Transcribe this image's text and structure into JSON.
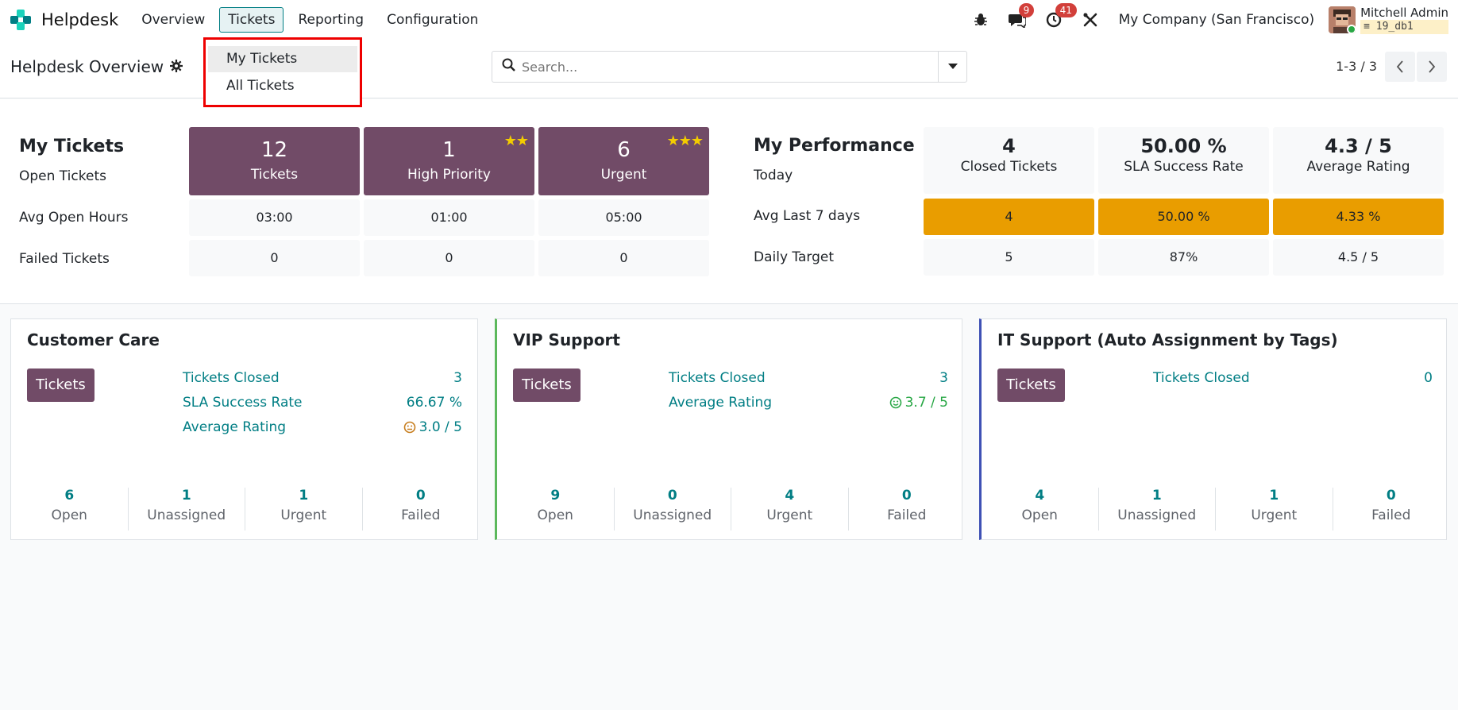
{
  "app": {
    "name": "Helpdesk"
  },
  "menu": [
    "Overview",
    "Tickets",
    "Reporting",
    "Configuration"
  ],
  "nav": {
    "chat_count": "9",
    "activity_count": "41",
    "company": "My Company (San Francisco)",
    "user_name": "Mitchell Admin",
    "user_db": "19_db1"
  },
  "control": {
    "title": "Helpdesk Overview",
    "search_placeholder": "Search...",
    "pager": "1-3 / 3"
  },
  "dropdown": [
    "My Tickets",
    "All Tickets"
  ],
  "my_tickets": {
    "heading": "My Tickets",
    "row_open": "Open Tickets",
    "row_avg": "Avg Open Hours",
    "row_failed": "Failed Tickets",
    "tiles": [
      {
        "value": "12",
        "label": "Tickets",
        "stars": ""
      },
      {
        "value": "1",
        "label": "High Priority",
        "stars": "★★"
      },
      {
        "value": "6",
        "label": "Urgent",
        "stars": "★★★"
      }
    ],
    "avg": [
      "03:00",
      "01:00",
      "05:00"
    ],
    "failed": [
      "0",
      "0",
      "0"
    ]
  },
  "performance": {
    "heading": "My Performance",
    "row_today": "Today",
    "row_avg7": "Avg Last 7 days",
    "row_target": "Daily Target",
    "today": [
      {
        "value": "4",
        "label": "Closed Tickets"
      },
      {
        "value": "50.00 %",
        "label": "SLA Success Rate"
      },
      {
        "value": "4.3 / 5",
        "label": "Average Rating"
      }
    ],
    "avg7": [
      "4",
      "50.00 %",
      "4.33 %"
    ],
    "target": [
      "5",
      "87%",
      "4.5 / 5"
    ]
  },
  "teams": [
    {
      "name": "Customer Care",
      "button": "Tickets",
      "color": "#ffffff",
      "stats": [
        {
          "label": "Tickets Closed",
          "value": "3"
        },
        {
          "label": "SLA Success Rate",
          "value": "66.67 %"
        },
        {
          "label": "Average Rating",
          "value": "3.0 / 5",
          "icon": "neutral-face-icon"
        }
      ],
      "bottom": [
        {
          "value": "6",
          "label": "Open"
        },
        {
          "value": "1",
          "label": "Unassigned"
        },
        {
          "value": "1",
          "label": "Urgent"
        },
        {
          "value": "0",
          "label": "Failed"
        }
      ]
    },
    {
      "name": "VIP Support",
      "button": "Tickets",
      "color": "#5cb85c",
      "stats": [
        {
          "label": "Tickets Closed",
          "value": "3"
        },
        {
          "label": "Average Rating",
          "value": "3.7 / 5",
          "icon": "smile-face-icon"
        }
      ],
      "bottom": [
        {
          "value": "9",
          "label": "Open"
        },
        {
          "value": "0",
          "label": "Unassigned"
        },
        {
          "value": "4",
          "label": "Urgent"
        },
        {
          "value": "0",
          "label": "Failed"
        }
      ]
    },
    {
      "name": "IT Support (Auto Assignment by Tags)",
      "button": "Tickets",
      "color": "#3f51b5",
      "stats": [
        {
          "label": "Tickets Closed",
          "value": "0"
        }
      ],
      "bottom": [
        {
          "value": "4",
          "label": "Open"
        },
        {
          "value": "1",
          "label": "Unassigned"
        },
        {
          "value": "1",
          "label": "Urgent"
        },
        {
          "value": "0",
          "label": "Failed"
        }
      ]
    }
  ],
  "colors": {
    "primary": "#714b67",
    "accent": "#017e84",
    "highlight": "#e99d00",
    "badge": "#d23f3a"
  }
}
